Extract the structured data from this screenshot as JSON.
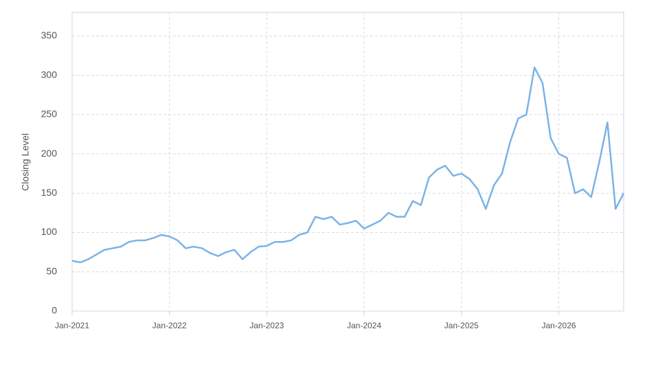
{
  "chart_data": {
    "type": "line",
    "y_label": "Closing Level",
    "x": [
      "Jan-2021",
      "Feb-2021",
      "Mar-2021",
      "Apr-2021",
      "May-2021",
      "Jun-2021",
      "Jul-2021",
      "Aug-2021",
      "Sep-2021",
      "Oct-2021",
      "Nov-2021",
      "Dec-2021",
      "Jan-2022",
      "Feb-2022",
      "Mar-2022",
      "Apr-2022",
      "May-2022",
      "Jun-2022",
      "Jul-2022",
      "Aug-2022",
      "Sep-2022",
      "Oct-2022",
      "Nov-2022",
      "Dec-2022",
      "Jan-2023",
      "Feb-2023",
      "Mar-2023",
      "Apr-2023",
      "May-2023",
      "Jun-2023",
      "Jul-2023",
      "Aug-2023",
      "Sep-2023",
      "Oct-2023",
      "Nov-2023",
      "Dec-2023",
      "Jan-2024",
      "Feb-2024",
      "Mar-2024",
      "Apr-2024",
      "May-2024",
      "Jun-2024",
      "Jul-2024",
      "Aug-2024",
      "Sep-2024",
      "Oct-2024",
      "Nov-2024",
      "Dec-2024",
      "Jan-2025",
      "Feb-2025",
      "Mar-2025",
      "Apr-2025",
      "May-2025",
      "Jun-2025",
      "Jul-2025",
      "Aug-2025",
      "Sep-2025",
      "Oct-2025",
      "Nov-2025",
      "Dec-2025",
      "Jan-2026",
      "Feb-2026",
      "Mar-2026",
      "Apr-2026",
      "May-2026",
      "Jun-2026",
      "Jul-2026",
      "Aug-2026",
      "Sep-2026"
    ],
    "series": [
      {
        "name": "Closing Level",
        "color": "#7ab3e6",
        "values": [
          64,
          62,
          66,
          72,
          78,
          80,
          82,
          88,
          90,
          90,
          93,
          97,
          95,
          90,
          80,
          82,
          80,
          74,
          70,
          75,
          78,
          66,
          75,
          82,
          83,
          88,
          88,
          90,
          97,
          100,
          120,
          117,
          120,
          110,
          112,
          115,
          105,
          110,
          115,
          125,
          120,
          120,
          140,
          135,
          170,
          180,
          185,
          172,
          175,
          168,
          155,
          130,
          160,
          175,
          215,
          245,
          250,
          310,
          290,
          220,
          200,
          195,
          150,
          155,
          145,
          190,
          240,
          130,
          150
        ]
      }
    ],
    "xticks": [
      "Jan-2021",
      "Jan-2022",
      "Jan-2023",
      "Jan-2024",
      "Jan-2025",
      "Jan-2026"
    ],
    "ylim": [
      0,
      380
    ],
    "yticks": [
      0,
      50,
      100,
      150,
      200,
      250,
      300,
      350
    ],
    "grid": true
  }
}
